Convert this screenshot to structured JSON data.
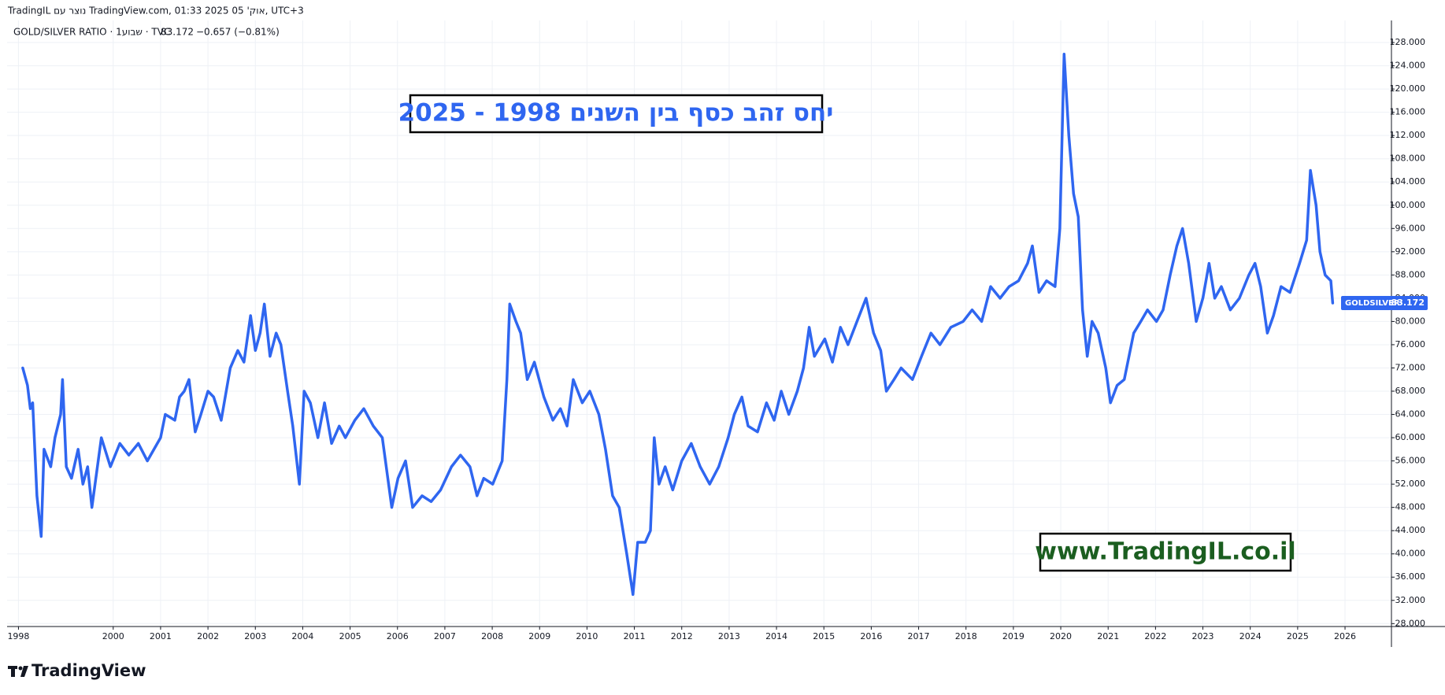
{
  "header": {
    "text": "TradingIL נוצר עם TradingView.com, 01:33 2025 אוק' 05, UTC+3"
  },
  "legend": {
    "symbol": "GOLD/SILVER RATIO · 1שבוע · TVC",
    "change": "−0.657 (−0.81%)"
  },
  "footer": {
    "logo": "TradingView"
  },
  "chart_data": {
    "type": "line",
    "title": "יחס זהב כסף בין השנים 1998 - 2025",
    "watermark": "www.TradingIL.co.il",
    "grid": true,
    "xlim": [
      1997.76,
      2026.98
    ],
    "xticks": [
      1998,
      2000,
      2001,
      2002,
      2003,
      2004,
      2005,
      2006,
      2007,
      2008,
      2009,
      2010,
      2011,
      2012,
      2013,
      2014,
      2015,
      2016,
      2017,
      2018,
      2019,
      2020,
      2021,
      2022,
      2023,
      2024,
      2025,
      2026
    ],
    "ylim": [
      27.5,
      131.8
    ],
    "yticks": [
      {
        "value": 28,
        "label": "28.000"
      },
      {
        "value": 32,
        "label": "32.000"
      },
      {
        "value": 36,
        "label": "36.000"
      },
      {
        "value": 40,
        "label": "40.000"
      },
      {
        "value": 44,
        "label": "44.000"
      },
      {
        "value": 48,
        "label": "48.000"
      },
      {
        "value": 52,
        "label": "52.000"
      },
      {
        "value": 56,
        "label": "56.000"
      },
      {
        "value": 60,
        "label": "60.000"
      },
      {
        "value": 64,
        "label": "64.000"
      },
      {
        "value": 68,
        "label": "68.000"
      },
      {
        "value": 72,
        "label": "72.000"
      },
      {
        "value": 76,
        "label": "76.000"
      },
      {
        "value": 80,
        "label": "80.000"
      },
      {
        "value": 84,
        "label": "84.000"
      },
      {
        "value": 88,
        "label": "88.000"
      },
      {
        "value": 92,
        "label": "92.000"
      },
      {
        "value": 96,
        "label": "96.000"
      },
      {
        "value": 100,
        "label": "100.000"
      },
      {
        "value": 104,
        "label": "104.000"
      },
      {
        "value": 108,
        "label": "108.000"
      },
      {
        "value": 112,
        "label": "112.000"
      },
      {
        "value": 116,
        "label": "116.000"
      },
      {
        "value": 120,
        "label": "120.000"
      },
      {
        "value": 124,
        "label": "124.000"
      },
      {
        "value": 128,
        "label": "128.000"
      }
    ],
    "x": [
      1998.09,
      1998.19,
      1998.25,
      1998.3,
      1998.39,
      1998.48,
      1998.54,
      1998.68,
      1998.77,
      1998.89,
      1998.93,
      1999.01,
      1999.12,
      1999.26,
      1999.36,
      1999.46,
      1999.55,
      1999.75,
      1999.94,
      2000.14,
      2000.33,
      2000.53,
      2000.72,
      2001.0,
      2001.1,
      2001.3,
      2001.4,
      2001.5,
      2001.6,
      2001.73,
      2001.85,
      2002.0,
      2002.12,
      2002.28,
      2002.47,
      2002.63,
      2002.76,
      2002.9,
      2003.0,
      2003.1,
      2003.19,
      2003.31,
      2003.44,
      2003.54,
      2003.68,
      2003.79,
      2003.93,
      2004.03,
      2004.16,
      2004.32,
      2004.46,
      2004.61,
      2004.77,
      2004.9,
      2005.1,
      2005.29,
      2005.49,
      2005.68,
      2005.88,
      2006.01,
      2006.17,
      2006.32,
      2006.52,
      2006.71,
      2006.91,
      2007.14,
      2007.33,
      2007.53,
      2007.68,
      2007.82,
      2008.01,
      2008.21,
      2008.31,
      2008.37,
      2008.5,
      2008.6,
      2008.74,
      2008.89,
      2009.09,
      2009.28,
      2009.44,
      2009.58,
      2009.71,
      2009.9,
      2010.06,
      2010.25,
      2010.39,
      2010.54,
      2010.68,
      2010.84,
      2010.97,
      2011.07,
      2011.23,
      2011.34,
      2011.42,
      2011.52,
      2011.65,
      2011.81,
      2012.0,
      2012.2,
      2012.39,
      2012.59,
      2012.78,
      2012.98,
      2013.11,
      2013.27,
      2013.4,
      2013.6,
      2013.79,
      2013.95,
      2014.1,
      2014.26,
      2014.44,
      2014.57,
      2014.69,
      2014.8,
      2015.02,
      2015.18,
      2015.35,
      2015.51,
      2015.7,
      2015.89,
      2016.05,
      2016.2,
      2016.32,
      2016.48,
      2016.63,
      2016.87,
      2017.06,
      2017.26,
      2017.45,
      2017.68,
      2017.94,
      2018.13,
      2018.33,
      2018.52,
      2018.72,
      2018.91,
      2019.11,
      2019.3,
      2019.4,
      2019.54,
      2019.7,
      2019.88,
      2019.98,
      2020.07,
      2020.17,
      2020.27,
      2020.37,
      2020.46,
      2020.56,
      2020.66,
      2020.79,
      2020.95,
      2021.05,
      2021.19,
      2021.34,
      2021.54,
      2021.69,
      2021.83,
      2022.02,
      2022.16,
      2022.31,
      2022.45,
      2022.57,
      2022.7,
      2022.86,
      2023.0,
      2023.13,
      2023.25,
      2023.39,
      2023.58,
      2023.77,
      2023.97,
      2024.1,
      2024.22,
      2024.36,
      2024.49,
      2024.65,
      2024.84,
      2025.04,
      2025.19,
      2025.27,
      2025.39,
      2025.47,
      2025.58,
      2025.7,
      2025.74
    ],
    "series": [
      {
        "name": "GOLDSILVER",
        "color": "#2f66f0",
        "values": [
          72,
          69,
          65,
          66,
          50,
          43,
          58,
          55,
          60,
          64,
          70,
          55,
          53,
          58,
          52,
          55,
          48,
          60,
          55,
          59,
          57,
          59,
          56,
          60,
          64,
          63,
          67,
          68,
          70,
          61,
          64,
          68,
          67,
          63,
          72,
          75,
          73,
          81,
          75,
          78,
          83,
          74,
          78,
          76,
          68,
          62,
          52,
          68,
          66,
          60,
          66,
          59,
          62,
          60,
          63,
          65,
          62,
          60,
          48,
          53,
          56,
          48,
          50,
          49,
          51,
          55,
          57,
          55,
          50,
          53,
          52,
          56,
          70,
          83,
          80,
          78,
          70,
          73,
          67,
          63,
          65,
          62,
          70,
          66,
          68,
          64,
          58,
          50,
          48,
          40,
          33,
          42,
          42,
          44,
          60,
          52,
          55,
          51,
          56,
          59,
          55,
          52,
          55,
          60,
          64,
          67,
          62,
          61,
          66,
          63,
          68,
          64,
          68,
          72,
          79,
          74,
          77,
          73,
          79,
          76,
          80,
          84,
          78,
          75,
          68,
          70,
          72,
          70,
          74,
          78,
          76,
          79,
          80,
          82,
          80,
          86,
          84,
          86,
          87,
          90,
          93,
          85,
          87,
          86,
          96,
          126,
          112,
          102,
          98,
          82,
          74,
          80,
          78,
          72,
          66,
          69,
          70,
          78,
          80,
          82,
          80,
          82,
          88,
          93,
          96,
          90,
          80,
          84,
          90,
          84,
          86,
          82,
          84,
          88,
          90,
          86,
          78,
          81,
          86,
          85,
          90,
          94,
          106,
          100,
          92,
          88,
          87,
          83.172
        ]
      }
    ]
  }
}
